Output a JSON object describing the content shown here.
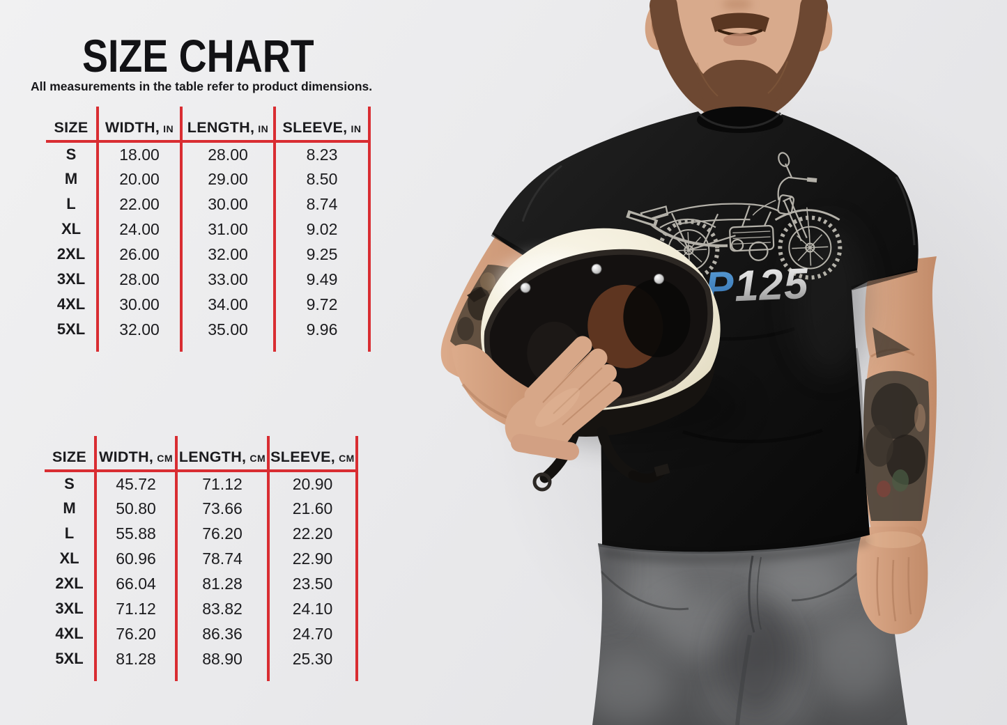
{
  "title": "SIZE CHART",
  "subtitle": "All measurements in the table refer to product dimensions.",
  "colors": {
    "accent_red": "#d92d32",
    "logo_blue": "#3a7fc1",
    "logo_silver": "#c9c9c9"
  },
  "tables": {
    "inches": {
      "headers": [
        {
          "label": "SIZE",
          "unit": ""
        },
        {
          "label": "WIDTH,",
          "unit": "IN"
        },
        {
          "label": "LENGTH,",
          "unit": "IN"
        },
        {
          "label": "SLEEVE,",
          "unit": "IN"
        }
      ],
      "rows": [
        [
          "S",
          "18.00",
          "28.00",
          "8.23"
        ],
        [
          "M",
          "20.00",
          "29.00",
          "8.50"
        ],
        [
          "L",
          "22.00",
          "30.00",
          "8.74"
        ],
        [
          "XL",
          "24.00",
          "31.00",
          "9.02"
        ],
        [
          "2XL",
          "26.00",
          "32.00",
          "9.25"
        ],
        [
          "3XL",
          "28.00",
          "33.00",
          "9.49"
        ],
        [
          "4XL",
          "30.00",
          "34.00",
          "9.72"
        ],
        [
          "5XL",
          "32.00",
          "35.00",
          "9.96"
        ]
      ]
    },
    "cm": {
      "headers": [
        {
          "label": "SIZE",
          "unit": ""
        },
        {
          "label": "WIDTH,",
          "unit": "CM"
        },
        {
          "label": "LENGTH,",
          "unit": "CM"
        },
        {
          "label": "SLEEVE,",
          "unit": "CM"
        }
      ],
      "rows": [
        [
          "S",
          "45.72",
          "71.12",
          "20.90"
        ],
        [
          "M",
          "50.80",
          "73.66",
          "21.60"
        ],
        [
          "L",
          "55.88",
          "76.20",
          "22.20"
        ],
        [
          "XL",
          "60.96",
          "78.74",
          "22.90"
        ],
        [
          "2XL",
          "66.04",
          "81.28",
          "23.50"
        ],
        [
          "3XL",
          "71.12",
          "83.82",
          "24.10"
        ],
        [
          "4XL",
          "76.20",
          "86.36",
          "24.70"
        ],
        [
          "5XL",
          "81.28",
          "88.90",
          "25.30"
        ]
      ]
    }
  },
  "photo": {
    "description": "Bearded man in a black t-shirt holding a cream retro full-face helmet under his arm, tattooed forearms, gray jeans",
    "shirt_graphic": {
      "sp": "SP",
      "model": "125",
      "art": "motorcycle-line-art"
    }
  }
}
